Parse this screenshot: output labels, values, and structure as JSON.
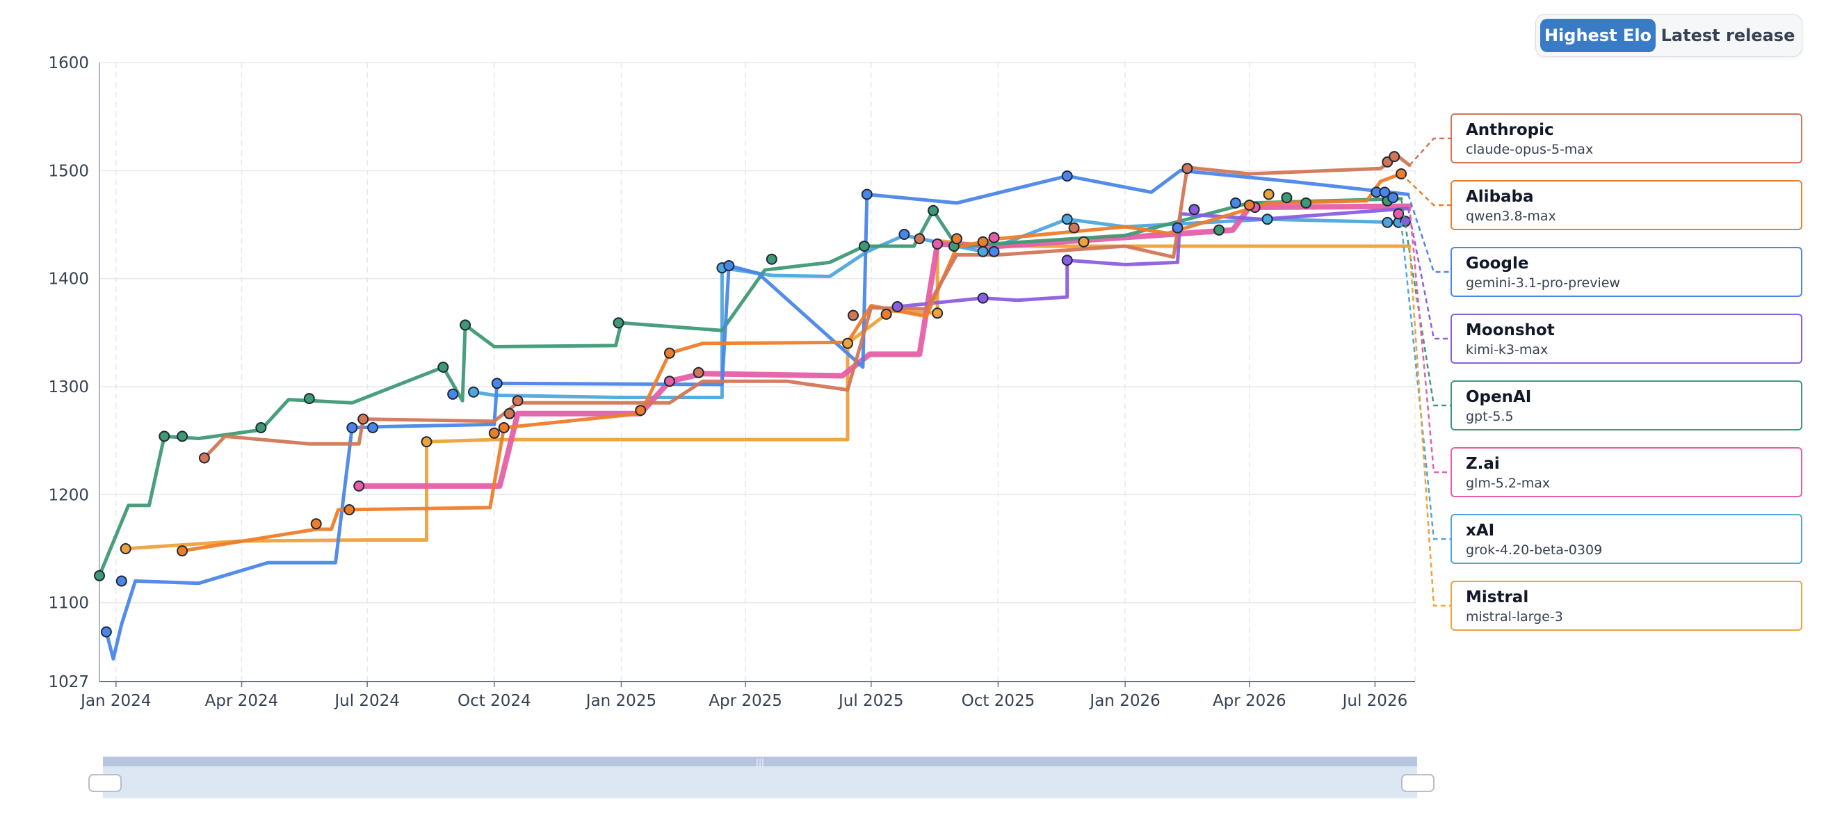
{
  "controls": {
    "toggle": [
      {
        "label": "Highest Elo",
        "active": true
      },
      {
        "label": "Latest release",
        "active": false
      }
    ]
  },
  "chart_data": {
    "type": "line",
    "title": "",
    "xlabel": "",
    "ylabel": "",
    "ylim": [
      1027,
      1600
    ],
    "xlim": [
      "2023-12-20",
      "2026-07-30"
    ],
    "y_ticks": [
      1600,
      1500,
      1400,
      1300,
      1200,
      1100,
      1027
    ],
    "x_ticks": [
      {
        "label": "Jan 2024",
        "date": "2024-01-01"
      },
      {
        "label": "Apr 2024",
        "date": "2024-04-01"
      },
      {
        "label": "Jul 2024",
        "date": "2024-07-01"
      },
      {
        "label": "Oct 2024",
        "date": "2024-10-01"
      },
      {
        "label": "Jan 2025",
        "date": "2025-01-01"
      },
      {
        "label": "Apr 2025",
        "date": "2025-04-01"
      },
      {
        "label": "Jul 2025",
        "date": "2025-07-01"
      },
      {
        "label": "Oct 2025",
        "date": "2025-10-01"
      },
      {
        "label": "Jan 2026",
        "date": "2026-01-01"
      },
      {
        "label": "Apr 2026",
        "date": "2026-04-01"
      },
      {
        "label": "Jul 2026",
        "date": "2026-07-01"
      }
    ],
    "grid": true,
    "legend_position": "right",
    "series": [
      {
        "name": "Mistral",
        "model": "mistral-large-3",
        "color": "#eda23a",
        "points": [
          [
            "2024-01-08",
            1150
          ],
          [
            "2024-03-30",
            1157
          ],
          [
            "2024-07-01",
            1158
          ],
          [
            "2024-08-13",
            1158
          ],
          [
            "2024-08-13",
            1249
          ],
          [
            "2024-10-01",
            1251
          ],
          [
            "2025-03-01",
            1251
          ],
          [
            "2025-06-14",
            1251
          ],
          [
            "2025-06-14",
            1340
          ],
          [
            "2025-07-15",
            1370
          ],
          [
            "2025-08-18",
            1368
          ],
          [
            "2025-08-18",
            1435
          ],
          [
            "2025-10-01",
            1430
          ],
          [
            "2026-01-01",
            1430
          ],
          [
            "2026-04-01",
            1430
          ],
          [
            "2026-07-26",
            1430
          ]
        ],
        "markers": [
          [
            "2024-01-08",
            1150
          ],
          [
            "2024-08-13",
            1249
          ],
          [
            "2025-06-14",
            1340
          ],
          [
            "2025-08-18",
            1368
          ],
          [
            "2025-12-02",
            1434
          ],
          [
            "2026-04-15",
            1478
          ]
        ]
      },
      {
        "name": "xAI",
        "model": "grok-4.20-beta-0309",
        "color": "#4ea6dd",
        "points": [
          [
            "2024-09-16",
            1295
          ],
          [
            "2024-10-01",
            1292
          ],
          [
            "2025-01-01",
            1290
          ],
          [
            "2025-03-15",
            1290
          ],
          [
            "2025-03-15",
            1410
          ],
          [
            "2025-04-20",
            1403
          ],
          [
            "2025-06-01",
            1402
          ],
          [
            "2025-06-28",
            1425
          ],
          [
            "2025-07-25",
            1440
          ],
          [
            "2025-09-20",
            1425
          ],
          [
            "2025-11-20",
            1455
          ],
          [
            "2026-01-01",
            1448
          ],
          [
            "2026-04-14",
            1455
          ],
          [
            "2026-07-20",
            1452
          ]
        ],
        "markers": [
          [
            "2024-09-16",
            1295
          ],
          [
            "2025-03-15",
            1410
          ],
          [
            "2025-09-20",
            1425
          ],
          [
            "2025-11-20",
            1455
          ],
          [
            "2026-04-14",
            1455
          ],
          [
            "2026-07-10",
            1452
          ],
          [
            "2026-07-18",
            1452
          ]
        ]
      },
      {
        "name": "Z.ai",
        "model": "glm-5.2-max",
        "color": "#e75ea6",
        "points": [
          [
            "2024-06-25",
            1208
          ],
          [
            "2024-10-05",
            1208
          ],
          [
            "2024-10-18",
            1275
          ],
          [
            "2025-01-15",
            1275
          ],
          [
            "2025-02-05",
            1305
          ],
          [
            "2025-03-01",
            1312
          ],
          [
            "2025-06-10",
            1310
          ],
          [
            "2025-06-30",
            1330
          ],
          [
            "2025-08-05",
            1330
          ],
          [
            "2025-08-18",
            1432
          ],
          [
            "2025-10-01",
            1430
          ],
          [
            "2026-03-20",
            1445
          ],
          [
            "2026-04-01",
            1466
          ],
          [
            "2026-07-26",
            1467
          ]
        ],
        "markers": [
          [
            "2024-06-25",
            1208
          ],
          [
            "2024-10-12",
            1275
          ],
          [
            "2025-02-05",
            1305
          ],
          [
            "2025-08-18",
            1432
          ],
          [
            "2025-09-28",
            1438
          ],
          [
            "2026-04-05",
            1466
          ],
          [
            "2026-07-18",
            1460
          ]
        ]
      },
      {
        "name": "OpenAI",
        "model": "gpt-5.5",
        "color": "#3f9a74",
        "points": [
          [
            "2023-12-20",
            1125
          ],
          [
            "2023-12-28",
            1150
          ],
          [
            "2024-01-10",
            1190
          ],
          [
            "2024-01-25",
            1190
          ],
          [
            "2024-02-05",
            1254
          ],
          [
            "2024-03-01",
            1252
          ],
          [
            "2024-04-15",
            1260
          ],
          [
            "2024-05-05",
            1288
          ],
          [
            "2024-06-20",
            1285
          ],
          [
            "2024-08-25",
            1318
          ],
          [
            "2024-09-08",
            1287
          ],
          [
            "2024-09-10",
            1357
          ],
          [
            "2024-10-01",
            1337
          ],
          [
            "2024-12-28",
            1338
          ],
          [
            "2025-01-01",
            1359
          ],
          [
            "2025-03-15",
            1352
          ],
          [
            "2025-04-15",
            1408
          ],
          [
            "2025-06-01",
            1415
          ],
          [
            "2025-06-26",
            1430
          ],
          [
            "2025-08-01",
            1430
          ],
          [
            "2025-08-15",
            1463
          ],
          [
            "2025-09-01",
            1430
          ],
          [
            "2026-01-01",
            1440
          ],
          [
            "2026-04-01",
            1470
          ],
          [
            "2026-07-20",
            1474
          ]
        ],
        "markers": [
          [
            "2023-12-20",
            1125
          ],
          [
            "2024-02-05",
            1254
          ],
          [
            "2024-02-18",
            1254
          ],
          [
            "2024-04-15",
            1262
          ],
          [
            "2024-05-20",
            1289
          ],
          [
            "2024-08-25",
            1318
          ],
          [
            "2024-09-10",
            1357
          ],
          [
            "2024-12-30",
            1359
          ],
          [
            "2025-04-20",
            1418
          ],
          [
            "2025-06-26",
            1430
          ],
          [
            "2025-08-15",
            1463
          ],
          [
            "2025-08-30",
            1430
          ],
          [
            "2026-03-10",
            1445
          ],
          [
            "2026-04-28",
            1475
          ],
          [
            "2026-05-12",
            1470
          ],
          [
            "2026-07-10",
            1472
          ]
        ]
      },
      {
        "name": "Moonshot",
        "model": "kimi-k3-max",
        "color": "#8a5ee0",
        "points": [
          [
            "2025-07-20",
            1374
          ],
          [
            "2025-09-20",
            1382
          ],
          [
            "2025-10-15",
            1380
          ],
          [
            "2025-11-20",
            1383
          ],
          [
            "2025-11-20",
            1417
          ],
          [
            "2026-01-01",
            1413
          ],
          [
            "2026-02-08",
            1415
          ],
          [
            "2026-02-10",
            1460
          ],
          [
            "2026-04-10",
            1455
          ],
          [
            "2026-07-25",
            1465
          ]
        ],
        "markers": [
          [
            "2025-07-20",
            1374
          ],
          [
            "2025-09-20",
            1382
          ],
          [
            "2025-11-20",
            1417
          ],
          [
            "2026-02-20",
            1464
          ],
          [
            "2026-07-23",
            1453
          ]
        ]
      },
      {
        "name": "Google",
        "model": "gemini-3.1-pro-preview",
        "color": "#4a86e8",
        "points": [
          [
            "2023-12-25",
            1073
          ],
          [
            "2023-12-30",
            1048
          ],
          [
            "2024-01-05",
            1080
          ],
          [
            "2024-01-15",
            1120
          ],
          [
            "2024-03-01",
            1118
          ],
          [
            "2024-04-20",
            1137
          ],
          [
            "2024-06-08",
            1137
          ],
          [
            "2024-06-20",
            1262
          ],
          [
            "2024-07-15",
            1263
          ],
          [
            "2024-10-01",
            1265
          ],
          [
            "2024-10-03",
            1303
          ],
          [
            "2025-03-15",
            1302
          ],
          [
            "2025-03-20",
            1412
          ],
          [
            "2025-04-10",
            1405
          ],
          [
            "2025-06-25",
            1318
          ],
          [
            "2025-06-28",
            1478
          ],
          [
            "2025-09-01",
            1470
          ],
          [
            "2025-11-20",
            1495
          ],
          [
            "2026-01-20",
            1480
          ],
          [
            "2026-02-10",
            1500
          ],
          [
            "2026-05-01",
            1490
          ],
          [
            "2026-07-25",
            1478
          ]
        ],
        "markers": [
          [
            "2023-12-25",
            1073
          ],
          [
            "2024-01-05",
            1120
          ],
          [
            "2024-06-20",
            1262
          ],
          [
            "2024-07-05",
            1262
          ],
          [
            "2024-09-01",
            1293
          ],
          [
            "2024-10-03",
            1303
          ],
          [
            "2025-03-20",
            1412
          ],
          [
            "2025-06-28",
            1478
          ],
          [
            "2025-07-25",
            1441
          ],
          [
            "2025-09-28",
            1425
          ],
          [
            "2025-11-20",
            1495
          ],
          [
            "2026-02-08",
            1447
          ],
          [
            "2026-03-22",
            1470
          ],
          [
            "2026-07-02",
            1480
          ],
          [
            "2026-07-08",
            1480
          ],
          [
            "2026-07-14",
            1475
          ]
        ]
      },
      {
        "name": "Alibaba",
        "model": "qwen3.8-max",
        "color": "#ee7d2a",
        "points": [
          [
            "2024-02-18",
            1148
          ],
          [
            "2024-05-25",
            1168
          ],
          [
            "2024-06-05",
            1168
          ],
          [
            "2024-06-10",
            1186
          ],
          [
            "2024-09-28",
            1188
          ],
          [
            "2024-10-08",
            1262
          ],
          [
            "2025-01-15",
            1275
          ],
          [
            "2025-02-05",
            1331
          ],
          [
            "2025-03-01",
            1340
          ],
          [
            "2025-06-14",
            1341
          ],
          [
            "2025-07-01",
            1375
          ],
          [
            "2025-08-10",
            1365
          ],
          [
            "2025-09-01",
            1429
          ],
          [
            "2025-10-01",
            1437
          ],
          [
            "2026-01-01",
            1448
          ],
          [
            "2026-02-01",
            1442
          ],
          [
            "2026-04-15",
            1470
          ],
          [
            "2026-06-25",
            1472
          ],
          [
            "2026-07-05",
            1490
          ],
          [
            "2026-07-20",
            1497
          ]
        ],
        "markers": [
          [
            "2024-02-18",
            1148
          ],
          [
            "2024-05-25",
            1173
          ],
          [
            "2024-06-18",
            1186
          ],
          [
            "2024-10-01",
            1257
          ],
          [
            "2024-10-08",
            1262
          ],
          [
            "2025-01-15",
            1278
          ],
          [
            "2025-02-05",
            1331
          ],
          [
            "2025-07-12",
            1367
          ],
          [
            "2025-09-01",
            1437
          ],
          [
            "2025-09-20",
            1434
          ],
          [
            "2026-04-01",
            1468
          ],
          [
            "2026-07-20",
            1497
          ]
        ]
      },
      {
        "name": "Anthropic",
        "model": "claude-opus-5-max",
        "color": "#d27656",
        "points": [
          [
            "2024-03-05",
            1234
          ],
          [
            "2024-03-20",
            1254
          ],
          [
            "2024-05-20",
            1247
          ],
          [
            "2024-06-25",
            1247
          ],
          [
            "2024-06-28",
            1270
          ],
          [
            "2024-10-01",
            1268
          ],
          [
            "2024-10-18",
            1285
          ],
          [
            "2025-02-05",
            1285
          ],
          [
            "2025-03-01",
            1305
          ],
          [
            "2025-05-01",
            1305
          ],
          [
            "2025-06-14",
            1297
          ],
          [
            "2025-07-01",
            1373
          ],
          [
            "2025-08-10",
            1372
          ],
          [
            "2025-09-01",
            1422
          ],
          [
            "2025-10-01",
            1422
          ],
          [
            "2026-01-01",
            1430
          ],
          [
            "2026-02-05",
            1420
          ],
          [
            "2026-02-15",
            1503
          ],
          [
            "2026-04-01",
            1497
          ],
          [
            "2026-07-05",
            1502
          ],
          [
            "2026-07-18",
            1513
          ],
          [
            "2026-07-26",
            1505
          ]
        ],
        "markers": [
          [
            "2024-03-05",
            1234
          ],
          [
            "2024-06-28",
            1270
          ],
          [
            "2024-10-12",
            1275
          ],
          [
            "2024-10-18",
            1287
          ],
          [
            "2025-02-26",
            1313
          ],
          [
            "2025-06-18",
            1366
          ],
          [
            "2025-08-05",
            1437
          ],
          [
            "2025-11-25",
            1447
          ],
          [
            "2026-02-15",
            1502
          ],
          [
            "2026-07-10",
            1508
          ],
          [
            "2026-07-15",
            1513
          ]
        ]
      }
    ]
  },
  "legend": [
    {
      "provider": "Anthropic",
      "model": "claude-opus-5-max",
      "color": "#d27656"
    },
    {
      "provider": "Alibaba",
      "model": "qwen3.8-max",
      "color": "#ee7d2a"
    },
    {
      "provider": "Google",
      "model": "gemini-3.1-pro-preview",
      "color": "#4a86e8"
    },
    {
      "provider": "Moonshot",
      "model": "kimi-k3-max",
      "color": "#8a5ee0"
    },
    {
      "provider": "OpenAI",
      "model": "gpt-5.5",
      "color": "#3f9a74"
    },
    {
      "provider": "Z.ai",
      "model": "glm-5.2-max",
      "color": "#e75ea6"
    },
    {
      "provider": "xAI",
      "model": "grok-4.20-beta-0309",
      "color": "#4ea6dd"
    },
    {
      "provider": "Mistral",
      "model": "mistral-large-3",
      "color": "#eda23a"
    }
  ],
  "range_slider": {
    "start": "2023-12-20",
    "end": "2026-07-30"
  }
}
